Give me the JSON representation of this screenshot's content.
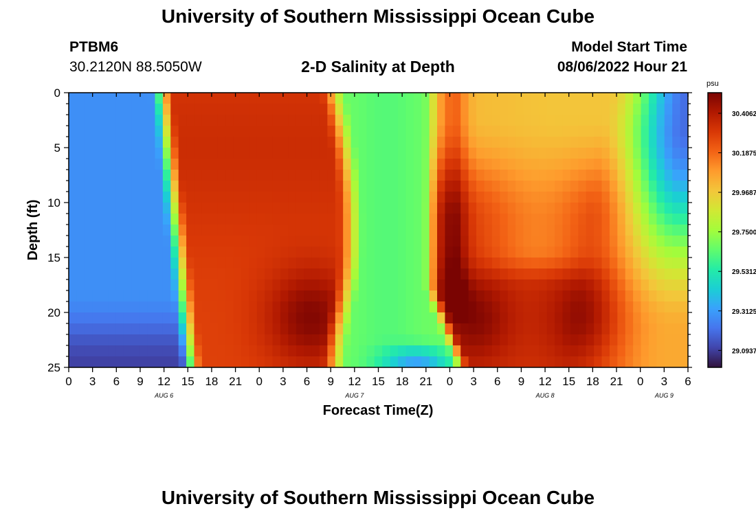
{
  "header": {
    "title": "University of Southern Mississippi Ocean Cube",
    "station_id": "PTBM6",
    "station_coords": "30.2120N  88.5050W",
    "subtitle": "2-D Salinity at Depth",
    "model_start_label": "Model Start Time",
    "model_start_value": "08/06/2022 Hour 21"
  },
  "footer": {
    "title": "University of Southern Mississippi Ocean Cube"
  },
  "chart_data": {
    "type": "heatmap",
    "title": "2-D Salinity at Depth",
    "xlabel": "Forecast Time(Z)",
    "ylabel": "Depth (ft)",
    "x_ticks": [
      "0",
      "3",
      "6",
      "9",
      "12",
      "15",
      "18",
      "21",
      "0",
      "3",
      "6",
      "9",
      "12",
      "15",
      "18",
      "21",
      "0",
      "3",
      "6",
      "9",
      "12",
      "15",
      "18",
      "21",
      "0",
      "3",
      "6"
    ],
    "y_ticks": [
      "0",
      "5",
      "10",
      "15",
      "20",
      "25"
    ],
    "ylim": [
      25,
      0
    ],
    "date_labels": [
      {
        "label": "AUG 6",
        "tick_index": 4
      },
      {
        "label": "AUG 7",
        "tick_index": 12
      },
      {
        "label": "AUG 8",
        "tick_index": 20
      },
      {
        "label": "AUG 9",
        "tick_index": 25
      }
    ],
    "colorbar": {
      "unit": "psu",
      "range": [
        29.0,
        30.52
      ],
      "tick_labels": [
        "30.4062",
        "30.1875",
        "29.9687",
        "29.7500",
        "29.5312",
        "29.3125",
        "29.0937"
      ],
      "tick_values": [
        30.4062,
        30.1875,
        29.9687,
        29.75,
        29.5312,
        29.3125,
        29.0937
      ],
      "stops": [
        "#30123b",
        "#4145ab",
        "#4675ed",
        "#39a2fc",
        "#1bcfd4",
        "#24eca6",
        "#61fc6c",
        "#a4fc3b",
        "#d1e834",
        "#f3c63a",
        "#fe9b2d",
        "#f36315",
        "#d93806",
        "#b11901",
        "#7a0402"
      ]
    },
    "summary": "Salinity by forecast time and depth: low (~29.1-29.4 psu) before AUG 6 12Z, high bands (~30.3-30.5 psu) AUG 6 15Z - AUG 7 9Z with maximum near 20 ft, low band (~29.7 psu) around AUG 7 15Z-21Z, high AUG 8 with surface near 29.95 psu and maxima near 20 ft at AUG 8 03Z and 18Z, decreasing toward AUG 9 06Z."
  }
}
